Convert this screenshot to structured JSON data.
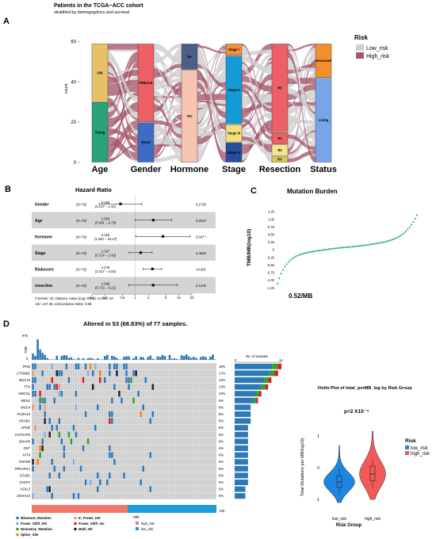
{
  "panel_a": {
    "letter": "A",
    "title": "Patients in the TCGA−ACC cohort",
    "subtitle": "stratified by demographics and survival",
    "ylabel": "count",
    "yticks": [
      "0",
      "20",
      "40",
      "60"
    ],
    "axes": [
      "Age",
      "Gender",
      "Hormone",
      "Stage",
      "Resection",
      "Status"
    ],
    "legend": {
      "title": "Risk",
      "items": [
        "Low_risk",
        "High_risk"
      ]
    },
    "colors": {
      "low": "#d0d0d0",
      "high": "#a4566a"
    },
    "chart_data": {
      "type": "alluvial",
      "ylim": [
        0,
        70
      ],
      "stacks": [
        {
          "axis": "Age",
          "strata": [
            {
              "label": "Young",
              "value": 30,
              "color": "#2ba37a"
            },
            {
              "label": "Old",
              "value": 29,
              "color": "#e8c167"
            }
          ]
        },
        {
          "axis": "Gender",
          "strata": [
            {
              "label": "MALE",
              "value": 20,
              "color": "#3f6bc4"
            },
            {
              "label": "FEMALE",
              "value": 39,
              "color": "#ec6066"
            }
          ]
        },
        {
          "axis": "Hormone",
          "strata": [
            {
              "label": "Yes",
              "value": 46,
              "color": "#f8c4b2"
            },
            {
              "label": "No",
              "value": 13,
              "color": "#4b5e86"
            }
          ]
        },
        {
          "axis": "Stage",
          "strata": [
            {
              "label": "Stage IV",
              "value": 10,
              "color": "#274d9e"
            },
            {
              "label": "Stage III",
              "value": 9,
              "color": "#f4e07a"
            },
            {
              "label": "Stage II",
              "value": 34,
              "color": "#159ad6"
            },
            {
              "label": "Stage I",
              "value": 6,
              "color": "#f28f3b"
            }
          ]
        },
        {
          "axis": "Resection",
          "strata": [
            {
              "label": "RX",
              "value": 3,
              "color": "#d6cc50"
            },
            {
              "label": "R2",
              "value": 6,
              "color": "#f6e58c"
            },
            {
              "label": "R1",
              "value": 6,
              "color": "#ec6066"
            },
            {
              "label": "R0",
              "value": 44,
              "color": "#ec6066"
            }
          ]
        },
        {
          "axis": "Status",
          "strata": [
            {
              "label": "Living",
              "value": 42,
              "color": "#78a4e8"
            },
            {
              "label": "Deceased",
              "value": 17,
              "color": "#f28f2a"
            }
          ]
        }
      ]
    }
  },
  "panel_b": {
    "letter": "B",
    "title": "Hazard Ratio",
    "rows": [
      {
        "name": "Gender",
        "n": "(N=70)",
        "hr": "0.455",
        "ci": "(0.147 − 1.41)",
        "p": "0.1730"
      },
      {
        "name": "Age",
        "n": "(N=70)",
        "hr": "2.593",
        "ci": "(0.991 − 6.79)",
        "p": "0.0523"
      },
      {
        "name": "Hormone",
        "n": "(N=70)",
        "hr": "4.316",
        "ci": "(1.020 − 18.27)",
        "p": "0.047 *"
      },
      {
        "name": "Stage",
        "n": "(N=70)",
        "hr": "1.327",
        "ci": "(0.724 − 2.43)",
        "p": "0.3606"
      },
      {
        "name": "Riskscore",
        "n": "(N=70)",
        "hr": "2.478",
        "ci": "(1.517 − 4.05)",
        "p": "<0.001"
      },
      {
        "name": "resection",
        "n": "(N=70)",
        "hr": "2.568",
        "ci": "(0.716 − 9.21)",
        "p": "0.1476"
      }
    ],
    "footnote1": "# Events: 24; Global p−value (Log−Rank): 9.114e−10",
    "footnote2": "AIC: 137.36; Concordance Index: 0.88",
    "xticks": [
      "0.1",
      "0.2",
      "0.5",
      "1",
      "2",
      "5",
      "10",
      "20"
    ],
    "chart_data": {
      "type": "forest",
      "x_scale": "log",
      "xlim": [
        0.1,
        20
      ],
      "hr": [
        0.455,
        2.593,
        4.316,
        1.327,
        2.478,
        2.568
      ],
      "ci_low": [
        0.147,
        0.991,
        1.02,
        0.724,
        1.517,
        0.716
      ],
      "ci_high": [
        1.41,
        6.79,
        18.27,
        2.43,
        4.05,
        9.21
      ]
    }
  },
  "panel_c": {
    "letter": "C",
    "title": "Mutation Burden",
    "ylabel": "TMB/MB(log10)",
    "yticks": [
      "1.25",
      "1.00",
      "0.75",
      "0.50",
      "0.25",
      "0",
      "-0.25",
      "-0.50",
      "-0.75",
      "-1.00",
      "-1.25"
    ],
    "median_label": "0.52/MB",
    "point_color": "#1a9e8c",
    "chart_data": {
      "type": "scatter",
      "ylim": [
        -1.25,
        1.35
      ],
      "n_points": 77,
      "y_sorted_min": -1.13,
      "y_sorted_max": 1.3
    }
  },
  "panel_d": {
    "letter": "D",
    "header": "Altered in 53 (68.83%) of 77 samples.",
    "tmb_label": "TMB",
    "tmb_max": "975",
    "samples_label": "No. of samples",
    "samples_ticks": [
      "0",
      "14"
    ],
    "risk_label": "risk",
    "genes": [
      {
        "name": "TP53",
        "pct": "18%",
        "count": 14
      },
      {
        "name": "CTNNB1",
        "pct": "17%",
        "count": 13
      },
      {
        "name": "MUC16",
        "pct": "14%",
        "count": 11
      },
      {
        "name": "TTN",
        "pct": "13%",
        "count": 10
      },
      {
        "name": "HMCN1",
        "pct": "10%",
        "count": 8
      },
      {
        "name": "MEN1",
        "pct": "9%",
        "count": 7
      },
      {
        "name": "MUC4",
        "pct": "8%",
        "count": 6
      },
      {
        "name": "PCDH15",
        "pct": "8%",
        "count": 6
      },
      {
        "name": "PKHD1",
        "pct": "8%",
        "count": 6
      },
      {
        "name": "APOB",
        "pct": "6%",
        "count": 5
      },
      {
        "name": "CNTNAP5",
        "pct": "6%",
        "count": 5
      },
      {
        "name": "DNAH5",
        "pct": "6%",
        "count": 5
      },
      {
        "name": "DST",
        "pct": "6%",
        "count": 5
      },
      {
        "name": "FAT4",
        "pct": "6%",
        "count": 5
      },
      {
        "name": "KMT2B",
        "pct": "6%",
        "count": 5
      },
      {
        "name": "PRKAR1A",
        "pct": "6%",
        "count": 5
      },
      {
        "name": "STAB1",
        "pct": "6%",
        "count": 5
      },
      {
        "name": "SVEP1",
        "pct": "6%",
        "count": 5
      },
      {
        "name": "ASXL3",
        "pct": "5%",
        "count": 4
      },
      {
        "name": "DNAH10",
        "pct": "5%",
        "count": 4
      }
    ],
    "mutation_legend": [
      {
        "label": "Missense_Mutation",
        "color": "#2f78b6"
      },
      {
        "label": "In_Frame_Del",
        "color": "#f28e7a"
      },
      {
        "label": "Frame_Shift_Del",
        "color": "#80b1e6"
      },
      {
        "label": "Frame_Shift_Ins",
        "color": "#e31a1c"
      },
      {
        "label": "Nonsense_Mutation",
        "color": "#33a02c"
      },
      {
        "label": "Multi_Hit",
        "color": "#222222"
      },
      {
        "label": "Splice_Site",
        "color": "#ff7f00"
      }
    ],
    "risk_legend": {
      "title": "risk",
      "items": [
        {
          "label": "high_risk",
          "color": "#f2776a"
        },
        {
          "label": "low_risk",
          "color": "#1e9ad6"
        }
      ]
    }
  },
  "panel_violin": {
    "title": "Violin Plot of total_perMB_log by Risk Group",
    "pvalue": "p=2 X10⁻⁴",
    "ylabel": "Total Mutations per MB(log10)",
    "xlabel": "Risk Group",
    "xticks": [
      "low_risk",
      "high_risk"
    ],
    "yticks": [
      "1",
      "0",
      "-1"
    ],
    "legend": {
      "title": "Risk",
      "items": [
        {
          "label": "low_risk",
          "color": "#1e86e0"
        },
        {
          "label": "high_risk",
          "color": "#f25a5a"
        }
      ]
    },
    "chart_data": {
      "type": "violin",
      "ylim": [
        -1.4,
        1.5
      ],
      "groups": [
        {
          "name": "low_risk",
          "median": -0.45,
          "q1": -0.62,
          "q3": -0.25,
          "min": -1.1,
          "max": 0.7
        },
        {
          "name": "high_risk",
          "median": -0.2,
          "q1": -0.42,
          "q3": 0.05,
          "min": -1.0,
          "max": 1.15
        }
      ]
    }
  }
}
